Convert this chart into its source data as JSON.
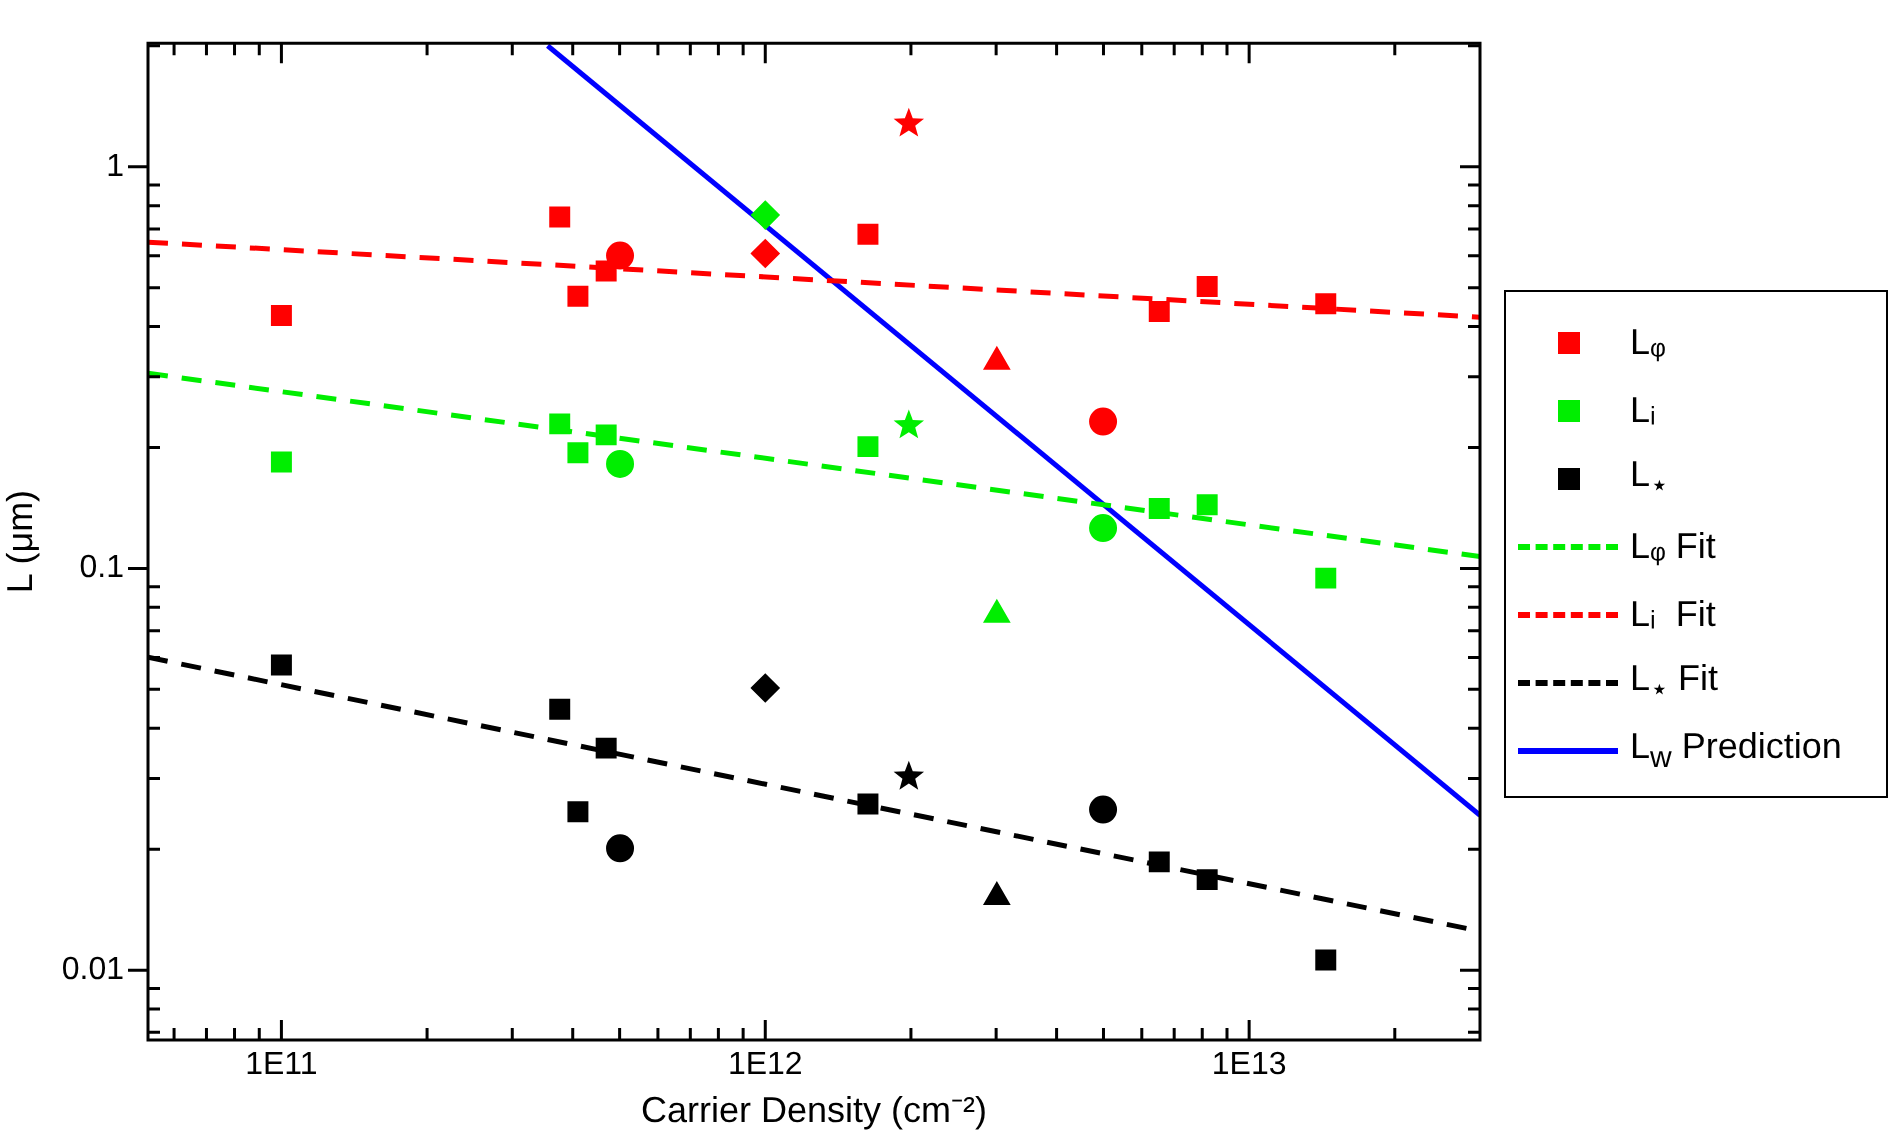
{
  "chart_data": {
    "type": "scatter",
    "xlabel": "Carrier Density (cm⁻²)",
    "ylabel": "L (μm)",
    "log": "xy",
    "grid": false,
    "legend": "right",
    "xlim": [
      53000000000.0,
      30000000000000.0
    ],
    "xticks": [
      {
        "value": 60000000000.0,
        "label": null
      },
      {
        "value": 70000000000.0,
        "label": null
      },
      {
        "value": 80000000000.0,
        "label": null
      },
      {
        "value": 90000000000.0,
        "label": null
      },
      {
        "value": 100000000000.0,
        "label": "1E11"
      },
      {
        "value": 200000000000.0,
        "label": null
      },
      {
        "value": 300000000000.0,
        "label": null
      },
      {
        "value": 400000000000.0,
        "label": null
      },
      {
        "value": 500000000000.0,
        "label": null
      },
      {
        "value": 600000000000.0,
        "label": null
      },
      {
        "value": 700000000000.0,
        "label": null
      },
      {
        "value": 800000000000.0,
        "label": null
      },
      {
        "value": 900000000000.0,
        "label": null
      },
      {
        "value": 1000000000000.0,
        "label": "1E12"
      },
      {
        "value": 2000000000000.0,
        "label": null
      },
      {
        "value": 3000000000000.0,
        "label": null
      },
      {
        "value": 4000000000000.0,
        "label": null
      },
      {
        "value": 5000000000000.0,
        "label": null
      },
      {
        "value": 6000000000000.0,
        "label": null
      },
      {
        "value": 7000000000000.0,
        "label": null
      },
      {
        "value": 8000000000000.0,
        "label": null
      },
      {
        "value": 9000000000000.0,
        "label": null
      },
      {
        "value": 10000000000000.0,
        "label": "1E13"
      },
      {
        "value": 20000000000000.0,
        "label": null
      }
    ],
    "ylim": [
      0.0067,
      2.03
    ],
    "yticks": [
      {
        "value": 0.007,
        "label": null
      },
      {
        "value": 0.008,
        "label": null
      },
      {
        "value": 0.009,
        "label": null
      },
      0.01,
      {
        "value": 0.02,
        "label": null
      },
      {
        "value": 0.03,
        "label": null
      },
      {
        "value": 0.04,
        "label": null
      },
      {
        "value": 0.05,
        "label": null
      },
      {
        "value": 0.06,
        "label": null
      },
      {
        "value": 0.07,
        "label": null
      },
      {
        "value": 0.08,
        "label": null
      },
      {
        "value": 0.09,
        "label": null
      },
      0.1,
      {
        "value": 0.2,
        "label": null
      },
      {
        "value": 0.3,
        "label": null
      },
      {
        "value": 0.4,
        "label": null
      },
      {
        "value": 0.5,
        "label": null
      },
      {
        "value": 0.6,
        "label": null
      },
      {
        "value": 0.7,
        "label": null
      },
      {
        "value": 0.8,
        "label": null
      },
      {
        "value": 0.9,
        "label": null
      },
      1,
      {
        "value": 2,
        "label": null
      }
    ],
    "series": [
      {
        "name": "Lᵩ",
        "marker": "square",
        "color": "#ff0000",
        "x": [
          100000000000.0,
          376000000000.0,
          410000000000.0,
          469000000000.0,
          1630000000000.0,
          6520000000000.0,
          8190000000000.0,
          14400000000000.0
        ],
        "values": [
          0.426,
          0.75,
          0.476,
          0.55,
          0.679,
          0.436,
          0.503,
          0.456
        ]
      },
      {
        "name": "Lᵢ",
        "marker": "square",
        "color": "#00ee00",
        "x": [
          100000000000.0,
          376000000000.0,
          410000000000.0,
          469000000000.0,
          1630000000000.0,
          6520000000000.0,
          8190000000000.0,
          14400000000000.0
        ],
        "values": [
          0.184,
          0.229,
          0.194,
          0.215,
          0.201,
          0.141,
          0.144,
          0.0946
        ]
      },
      {
        "name": "L$_{⋆}$",
        "marker": "square",
        "color": "#000000",
        "x": [
          100000000000.0,
          376000000000.0,
          410000000000.0,
          469000000000.0,
          1630000000000.0,
          6520000000000.0,
          8190000000000.0,
          14400000000000.0
        ],
        "values": [
          0.0575,
          0.0446,
          0.0248,
          0.0357,
          0.0259,
          0.0186,
          0.0168,
          0.0106
        ]
      },
      {
        "marker": "circle",
        "color": "#ff0000",
        "x": [
          501000000000.0,
          4990000000000.0
        ],
        "values": [
          0.601,
          0.232
        ]
      },
      {
        "marker": "diamond",
        "color": "#ff0000",
        "x": [
          1000000000000.0
        ],
        "values": [
          0.608
        ]
      },
      {
        "marker": "star",
        "color": "#ff0000",
        "x": [
          1980000000000.0
        ],
        "values": [
          1.28
        ]
      },
      {
        "marker": "triangle",
        "color": "#ff0000",
        "x": [
          3010000000000.0
        ],
        "values": [
          0.327
        ]
      },
      {
        "marker": "circle",
        "color": "#00ee00",
        "x": [
          501000000000.0,
          4990000000000.0
        ],
        "values": [
          0.182,
          0.126
        ]
      },
      {
        "marker": "diamond",
        "color": "#00ee00",
        "x": [
          1000000000000.0
        ],
        "values": [
          0.758
        ]
      },
      {
        "marker": "star",
        "color": "#00ee00",
        "x": [
          1980000000000.0
        ],
        "values": [
          0.227
        ]
      },
      {
        "marker": "triangle",
        "color": "#00ee00",
        "x": [
          3010000000000.0
        ],
        "values": [
          0.0767
        ]
      },
      {
        "marker": "circle",
        "color": "#000000",
        "x": [
          501000000000.0,
          4990000000000.0
        ],
        "values": [
          0.0201,
          0.0251
        ]
      },
      {
        "marker": "diamond",
        "color": "#000000",
        "x": [
          1000000000000.0
        ],
        "values": [
          0.0504
        ]
      },
      {
        "marker": "star",
        "color": "#000000",
        "x": [
          1980000000000.0
        ],
        "values": [
          0.0303
        ]
      },
      {
        "marker": "triangle",
        "color": "#000000",
        "x": [
          3010000000000.0
        ],
        "values": [
          0.0152
        ]
      },
      {
        "name": "Lᵩ Fit",
        "type": "line",
        "marker": "none",
        "line_style": "dashed",
        "color": "#00ee00",
        "x": [
          53000000000.0,
          30000000000000.0
        ],
        "values": [
          0.306,
          0.107
        ]
      },
      {
        "name": "Lᵢ  Fit",
        "type": "line",
        "marker": "none",
        "line_style": "dashed",
        "color": "#ff0000",
        "x": [
          53000000000.0,
          30000000000000.0
        ],
        "values": [
          0.649,
          0.422
        ]
      },
      {
        "name": "L$_{⋆}$ Fit",
        "type": "line",
        "marker": "none",
        "line_style": "dashed",
        "color": "#000000",
        "x": [
          53000000000.0,
          30000000000000.0
        ],
        "values": [
          0.0601,
          0.0125
        ]
      },
      {
        "name": "L$_{w}$ Prediction",
        "type": "line",
        "marker": "none",
        "line_style": "solid",
        "color": "#0000ff",
        "x": [
          355000000000.0,
          30000000000000.0
        ],
        "values": [
          2.0,
          0.0243
        ]
      }
    ]
  }
}
